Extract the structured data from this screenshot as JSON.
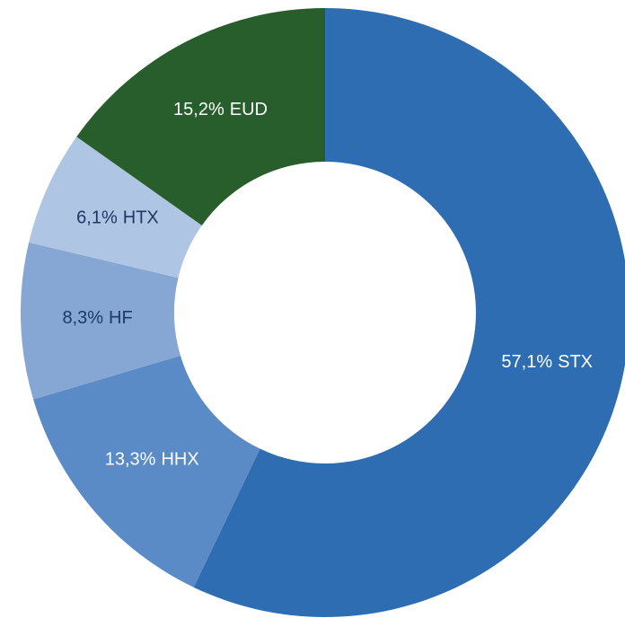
{
  "chart_data": {
    "type": "donut",
    "categories": [
      "STX",
      "HHX",
      "HF",
      "HTX",
      "EUD"
    ],
    "values": [
      57.1,
      13.3,
      8.3,
      6.1,
      15.2
    ],
    "value_labels": [
      "57,1%",
      "13,3%",
      "8,3%",
      "6,1%",
      "15,2%"
    ],
    "colors": [
      "#2f6db3",
      "#5b8bc6",
      "#86a7d4",
      "#aec5e4",
      "#275e2b"
    ]
  }
}
